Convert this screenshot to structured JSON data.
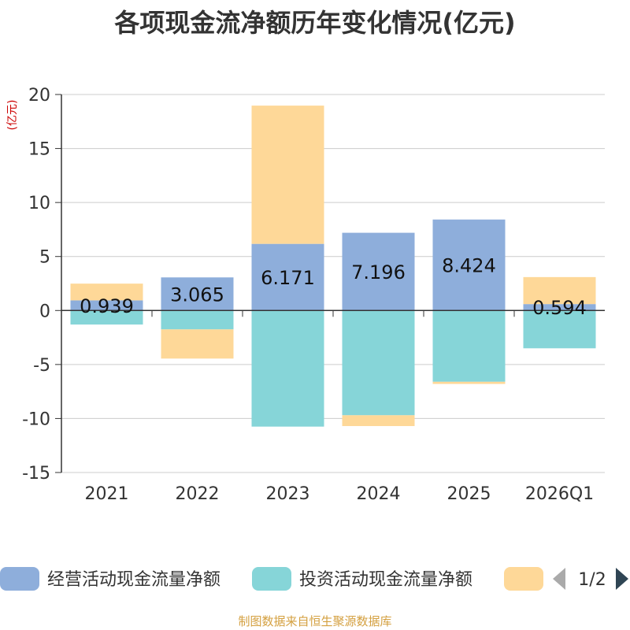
{
  "chart_data": {
    "type": "bar",
    "stacked": true,
    "title": "各项现金流净额历年变化情况(亿元)",
    "ylabel": "(亿元)",
    "xlabel": "",
    "ylim": [
      -15,
      20
    ],
    "yticks": [
      20,
      15,
      10,
      5,
      0,
      -5,
      -10,
      -15
    ],
    "categories": [
      "2021",
      "2022",
      "2023",
      "2024",
      "2025",
      "2026Q1"
    ],
    "series": [
      {
        "name": "经营活动现金流量净额",
        "color": "#8eaedb",
        "values": [
          0.939,
          3.065,
          6.171,
          7.196,
          8.424,
          0.594
        ],
        "labels": [
          "0.939",
          "3.065",
          "6.171",
          "7.196",
          "8.424",
          "0.594"
        ]
      },
      {
        "name": "投资活动现金流量净额",
        "color": "#86d5d8",
        "values": [
          -1.3,
          -1.75,
          -10.75,
          -9.7,
          -6.6,
          -3.5
        ]
      },
      {
        "name": "",
        "color": "#fed898",
        "values": [
          1.55,
          -2.7,
          12.8,
          -1.0,
          -0.2,
          2.5
        ]
      }
    ],
    "legend": {
      "position": "bottom",
      "page": "1/2"
    },
    "grid": true
  },
  "source": "制图数据来自恒生聚源数据库",
  "colors": {
    "axis": "#333333",
    "grid": "#cccccc",
    "unit": "#cc0000",
    "pager": "#2f4554",
    "pager_inactive": "#aaaaaa"
  }
}
